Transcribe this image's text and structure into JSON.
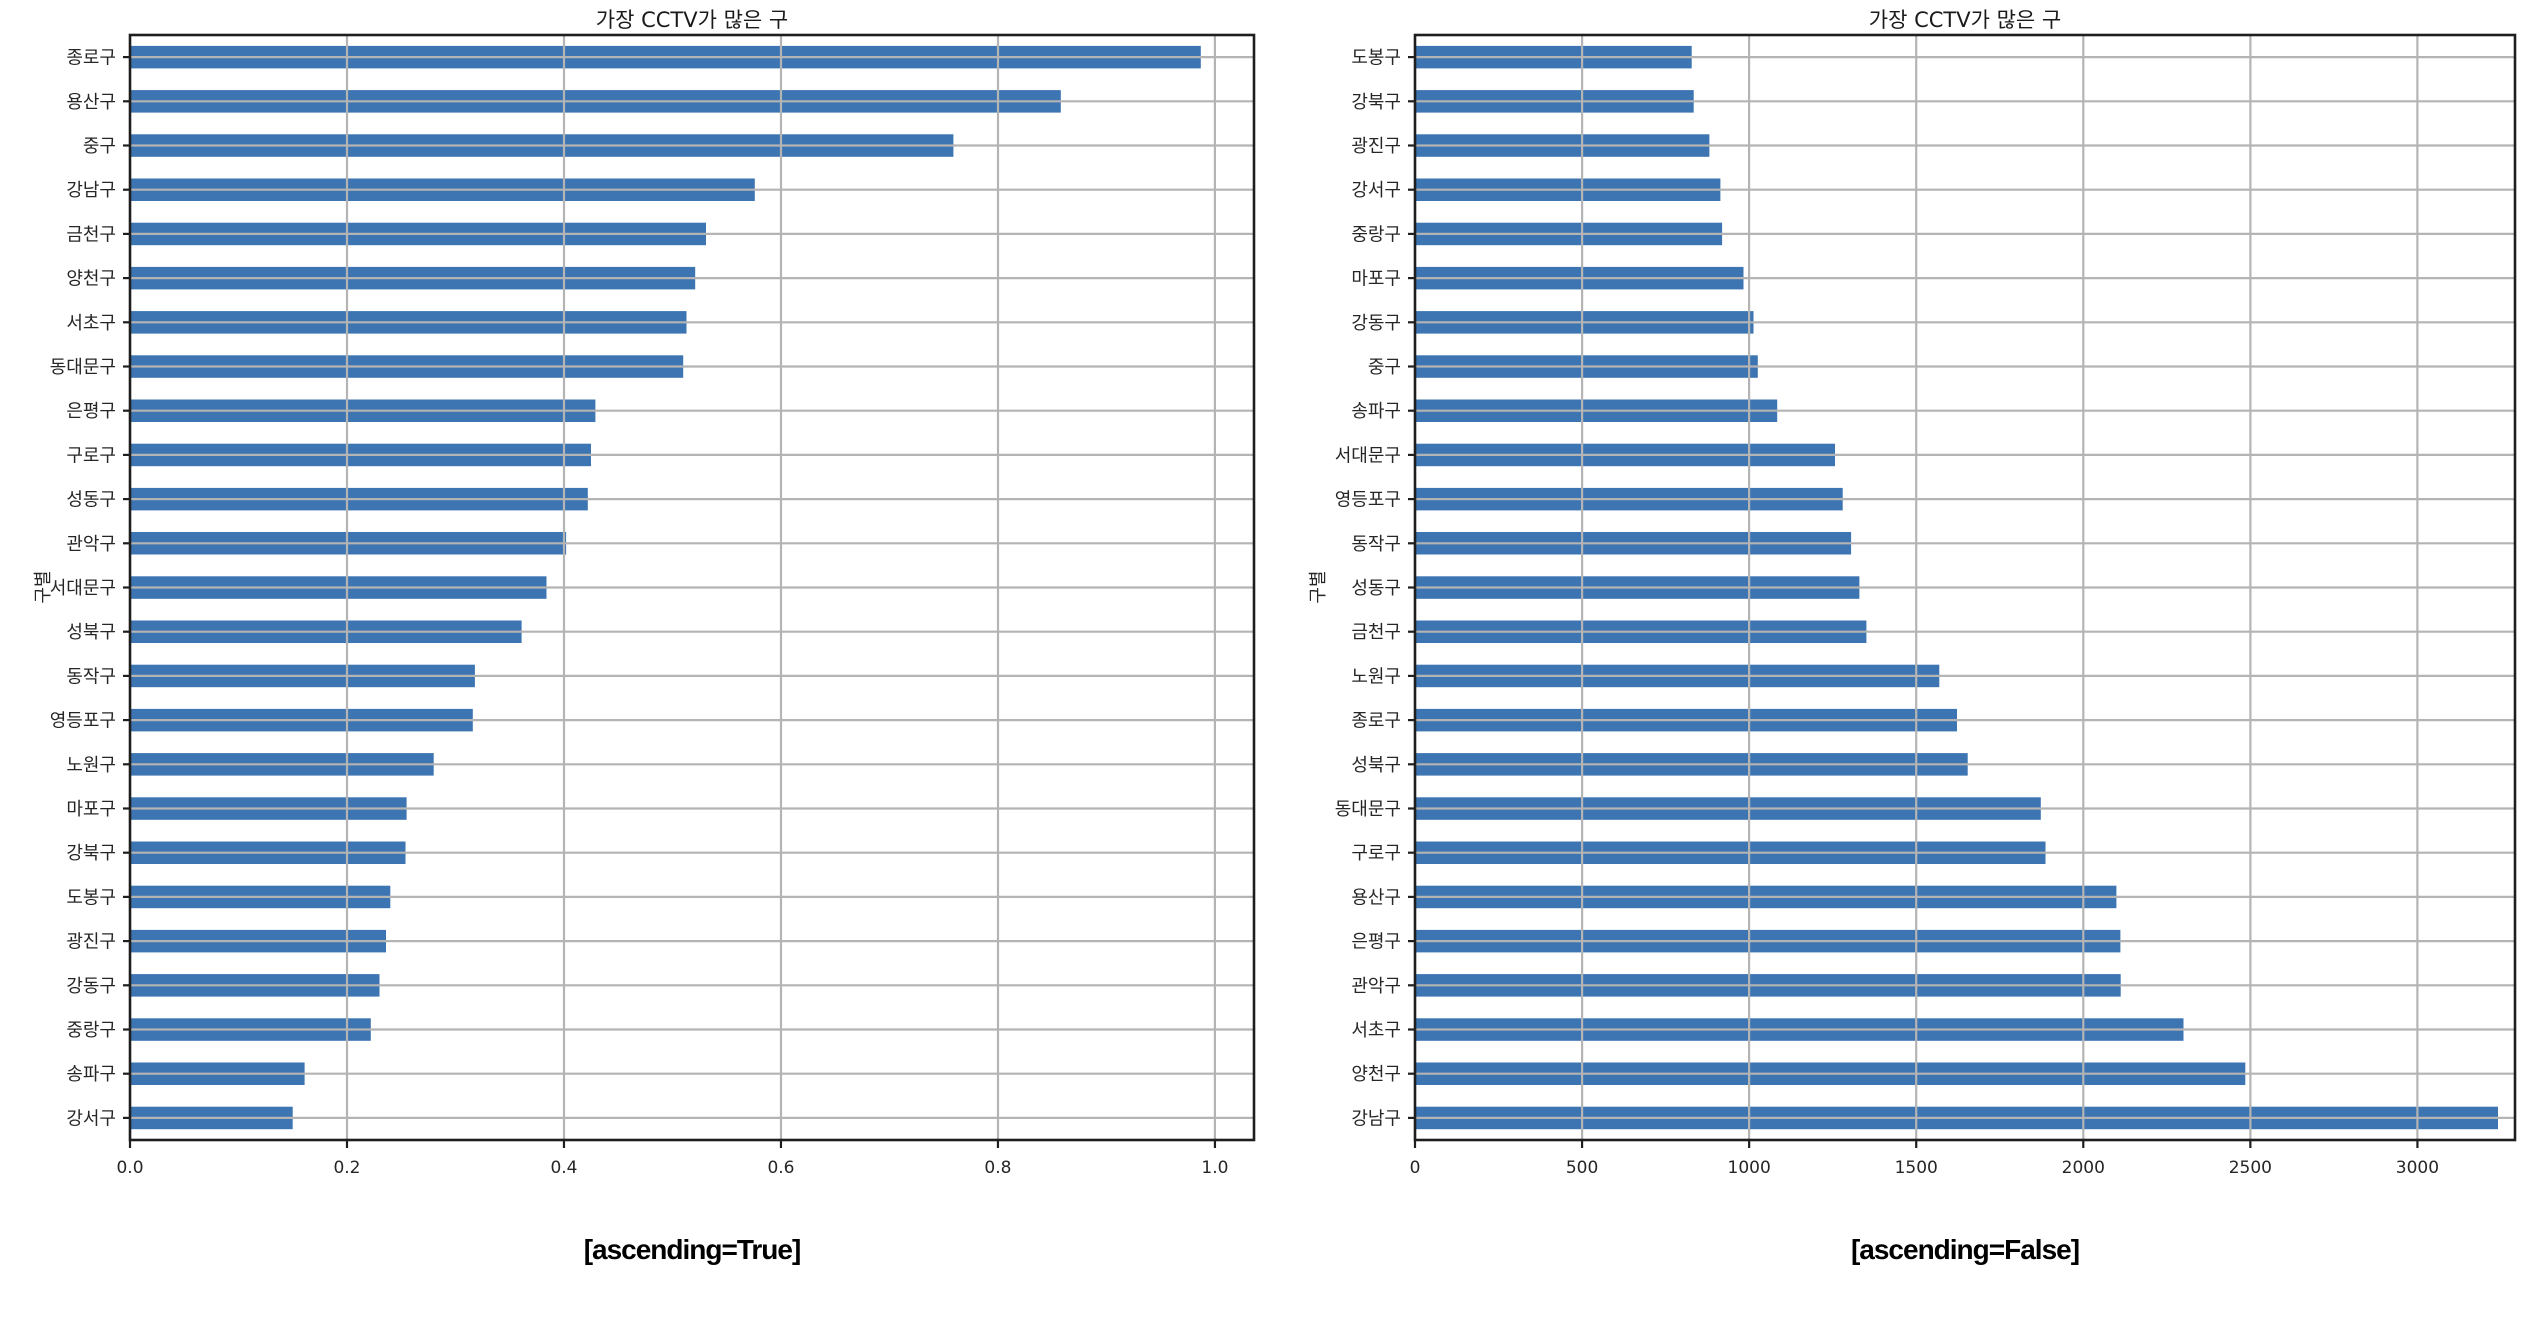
{
  "figure": {
    "background": "#ffffff",
    "description_left_caption": "[ascending=True]",
    "description_right_caption": "[ascending=False]"
  },
  "colors": {
    "bar": "#3d75b2",
    "grid": "#b4b4b4",
    "spine": "#1e1e1e",
    "tick_text": "#262626",
    "title_text": "#1a1a1a",
    "caption_text": "#000000"
  },
  "chart_data": [
    {
      "type": "bar",
      "orientation": "horizontal",
      "title": "가장 CCTV가 많은 구",
      "caption": "[ascending=True]",
      "ylabel": "구별",
      "xlabel": "",
      "grid": true,
      "xlim": [
        0,
        1.036
      ],
      "xtick_values": [
        0.0,
        0.2,
        0.4,
        0.6,
        0.8,
        1.0
      ],
      "xtick_labels": [
        "0.0",
        "0.2",
        "0.4",
        "0.6",
        "0.8",
        "1.0"
      ],
      "categories_top_to_bottom": [
        "종로구",
        "용산구",
        "중구",
        "강남구",
        "금천구",
        "양천구",
        "서초구",
        "동대문구",
        "은평구",
        "구로구",
        "성동구",
        "관악구",
        "서대문구",
        "성북구",
        "동작구",
        "영등포구",
        "노원구",
        "마포구",
        "강북구",
        "도봉구",
        "광진구",
        "강동구",
        "중랑구",
        "송파구",
        "강서구"
      ],
      "values": [
        0.986,
        0.857,
        0.758,
        0.575,
        0.53,
        0.52,
        0.512,
        0.509,
        0.428,
        0.424,
        0.421,
        0.401,
        0.383,
        0.36,
        0.317,
        0.315,
        0.279,
        0.254,
        0.253,
        0.239,
        0.235,
        0.229,
        0.221,
        0.16,
        0.149
      ]
    },
    {
      "type": "bar",
      "orientation": "horizontal",
      "title": "가장 CCTV가 많은 구",
      "caption": "[ascending=False]",
      "ylabel": "구별",
      "xlabel": "",
      "grid": true,
      "xlim": [
        0,
        3292
      ],
      "xtick_values": [
        0,
        500,
        1000,
        1500,
        2000,
        2500,
        3000
      ],
      "xtick_labels": [
        "0",
        "500",
        "1000",
        "1500",
        "2000",
        "2500",
        "3000"
      ],
      "categories_top_to_bottom": [
        "도봉구",
        "강북구",
        "광진구",
        "강서구",
        "중랑구",
        "마포구",
        "강동구",
        "중구",
        "송파구",
        "서대문구",
        "영등포구",
        "동작구",
        "성동구",
        "금천구",
        "노원구",
        "종로구",
        "성북구",
        "동대문구",
        "구로구",
        "용산구",
        "은평구",
        "관악구",
        "서초구",
        "양천구",
        "강남구"
      ],
      "values": [
        825,
        831,
        878,
        911,
        916,
        980,
        1010,
        1023,
        1081,
        1254,
        1277,
        1302,
        1327,
        1348,
        1566,
        1619,
        1651,
        1870,
        1884,
        2096,
        2108,
        2109,
        2297,
        2482,
        3238
      ]
    }
  ]
}
